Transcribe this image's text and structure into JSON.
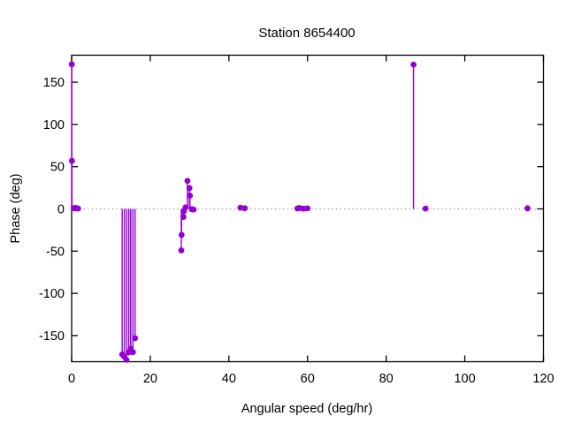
{
  "title": "Station 8654400",
  "colors": {
    "data": "#9400d3",
    "axis": "#000000",
    "zero_line": "#7f7f7f",
    "background": "#ffffff",
    "text": "#000000"
  },
  "chart_data": {
    "type": "scatter",
    "style": "impulses+points",
    "title": "Station 8654400",
    "xlabel": "Angular speed (deg/hr)",
    "ylabel": "Phase (deg)",
    "xlim": [
      0,
      120
    ],
    "ylim": [
      -181,
      182
    ],
    "xticks": [
      0,
      20,
      40,
      60,
      80,
      100,
      120
    ],
    "yticks": [
      -150,
      -100,
      -50,
      0,
      50,
      100,
      150
    ],
    "grid": false,
    "zero_line": "dotted",
    "legend_position": "none",
    "series": [
      {
        "name": "phase",
        "color": "#9400d3",
        "marker": "filled-circle",
        "points": [
          [
            0.0411,
            171.2
          ],
          [
            0.0821,
            56.9
          ],
          [
            0.5444,
            0.9
          ],
          [
            1.0159,
            0.6
          ],
          [
            1.098,
            1.1
          ],
          [
            1.6424,
            0.4
          ],
          [
            12.8543,
            -172.4
          ],
          [
            13.3987,
            -174.9
          ],
          [
            13.943,
            -178.8
          ],
          [
            14.4967,
            -170.1
          ],
          [
            14.9589,
            -167.8
          ],
          [
            15.0411,
            -165.9
          ],
          [
            15.5854,
            -169.7
          ],
          [
            16.1391,
            -153.2
          ],
          [
            27.8954,
            -49.2
          ],
          [
            27.9682,
            -30.8
          ],
          [
            28.4397,
            -9.6
          ],
          [
            28.5126,
            -2.9
          ],
          [
            28.9841,
            1.8
          ],
          [
            29.4556,
            33.2
          ],
          [
            29.9589,
            24.6
          ],
          [
            30.0821,
            15.7
          ],
          [
            30.5444,
            -0.3
          ],
          [
            31.0159,
            -0.8
          ],
          [
            42.9271,
            1.4
          ],
          [
            44.0252,
            0.8
          ],
          [
            57.4238,
            0.5
          ],
          [
            57.9682,
            1.0
          ],
          [
            58.9841,
            0.3
          ],
          [
            60.0,
            0.6
          ],
          [
            86.9523,
            170.9
          ],
          [
            90.0,
            0.4
          ],
          [
            115.9364,
            0.7
          ]
        ]
      }
    ]
  }
}
